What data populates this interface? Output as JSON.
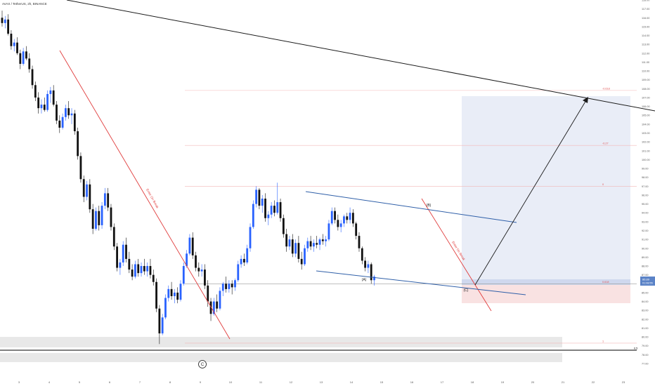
{
  "header": {
    "symbol": "AVAX / TetherUS, 2h, BINANCE"
  },
  "chart_data": {
    "type": "candlestick",
    "title": "AVAX / TetherUS, 2h, BINANCE",
    "xlabel": "",
    "ylabel": "",
    "ylim": [
      76.7,
      118.8
    ],
    "y_ticks": [
      "77.00",
      "78.00",
      "79.00",
      "80.00",
      "81.00",
      "82.00",
      "83.00",
      "84.00",
      "85.00",
      "86.00",
      "87.00",
      "88.00",
      "89.00",
      "90.00",
      "91.00",
      "92.00",
      "93.00",
      "94.00",
      "95.00",
      "96.00",
      "97.00",
      "98.00",
      "99.00",
      "100.00",
      "101.00",
      "102.00",
      "103.00",
      "104.00",
      "105.00",
      "106.00",
      "107.00",
      "108.00",
      "109.00",
      "110.00",
      "111.00",
      "112.00",
      "113.00",
      "114.00",
      "115.00",
      "116.00",
      "117.00",
      "118.00"
    ],
    "x_ticks": [
      "3",
      "4",
      "5",
      "6",
      "7",
      "8",
      "9",
      "10",
      "11",
      "12",
      "13",
      "14",
      "15",
      "16",
      "17",
      "18",
      "19",
      "20",
      "21",
      "22",
      "23"
    ],
    "grid": false,
    "candles": [
      {
        "o": 116.0,
        "h": 116.8,
        "l": 115.0,
        "c": 115.4
      },
      {
        "o": 115.4,
        "h": 116.2,
        "l": 114.8,
        "c": 115.8
      },
      {
        "o": 115.8,
        "h": 116.4,
        "l": 114.0,
        "c": 114.2
      },
      {
        "o": 114.2,
        "h": 114.6,
        "l": 112.4,
        "c": 112.8
      },
      {
        "o": 112.8,
        "h": 113.6,
        "l": 112.2,
        "c": 113.2
      },
      {
        "o": 113.2,
        "h": 113.8,
        "l": 111.8,
        "c": 112.0
      },
      {
        "o": 112.0,
        "h": 112.4,
        "l": 110.2,
        "c": 110.8
      },
      {
        "o": 110.8,
        "h": 112.6,
        "l": 110.6,
        "c": 112.2
      },
      {
        "o": 112.2,
        "h": 112.8,
        "l": 111.2,
        "c": 111.4
      },
      {
        "o": 111.4,
        "h": 112.0,
        "l": 109.8,
        "c": 110.2
      },
      {
        "o": 110.2,
        "h": 110.6,
        "l": 108.0,
        "c": 108.4
      },
      {
        "o": 108.4,
        "h": 108.8,
        "l": 106.6,
        "c": 107.0
      },
      {
        "o": 107.0,
        "h": 107.6,
        "l": 105.2,
        "c": 105.8
      },
      {
        "o": 105.8,
        "h": 106.8,
        "l": 105.2,
        "c": 106.2
      },
      {
        "o": 106.2,
        "h": 107.0,
        "l": 105.4,
        "c": 105.6
      },
      {
        "o": 105.6,
        "h": 107.8,
        "l": 105.4,
        "c": 107.4
      },
      {
        "o": 107.4,
        "h": 108.2,
        "l": 106.4,
        "c": 107.8
      },
      {
        "o": 107.8,
        "h": 108.4,
        "l": 106.0,
        "c": 106.2
      },
      {
        "o": 106.2,
        "h": 106.6,
        "l": 104.0,
        "c": 104.4
      },
      {
        "o": 104.4,
        "h": 105.0,
        "l": 103.0,
        "c": 103.6
      },
      {
        "o": 103.6,
        "h": 105.2,
        "l": 103.4,
        "c": 104.8
      },
      {
        "o": 104.8,
        "h": 106.2,
        "l": 104.4,
        "c": 105.8
      },
      {
        "o": 105.8,
        "h": 106.6,
        "l": 104.6,
        "c": 105.0
      },
      {
        "o": 105.0,
        "h": 105.8,
        "l": 104.0,
        "c": 105.2
      },
      {
        "o": 105.2,
        "h": 105.6,
        "l": 102.8,
        "c": 103.2
      },
      {
        "o": 103.2,
        "h": 103.6,
        "l": 100.0,
        "c": 100.4
      },
      {
        "o": 100.4,
        "h": 100.8,
        "l": 97.4,
        "c": 97.8
      },
      {
        "o": 97.8,
        "h": 98.2,
        "l": 95.2,
        "c": 95.8
      },
      {
        "o": 95.8,
        "h": 97.6,
        "l": 95.4,
        "c": 97.2
      },
      {
        "o": 97.2,
        "h": 97.8,
        "l": 94.0,
        "c": 94.4
      },
      {
        "o": 94.4,
        "h": 95.0,
        "l": 91.6,
        "c": 92.2
      },
      {
        "o": 92.2,
        "h": 94.6,
        "l": 92.0,
        "c": 94.2
      },
      {
        "o": 94.2,
        "h": 94.8,
        "l": 92.0,
        "c": 92.6
      },
      {
        "o": 92.6,
        "h": 95.2,
        "l": 92.2,
        "c": 94.8
      },
      {
        "o": 94.8,
        "h": 96.8,
        "l": 94.4,
        "c": 96.2
      },
      {
        "o": 96.2,
        "h": 96.8,
        "l": 94.2,
        "c": 94.6
      },
      {
        "o": 94.6,
        "h": 95.0,
        "l": 92.0,
        "c": 92.4
      },
      {
        "o": 92.4,
        "h": 92.8,
        "l": 89.8,
        "c": 90.2
      },
      {
        "o": 90.2,
        "h": 90.6,
        "l": 87.4,
        "c": 87.8
      },
      {
        "o": 87.8,
        "h": 88.8,
        "l": 87.0,
        "c": 88.4
      },
      {
        "o": 88.4,
        "h": 90.8,
        "l": 88.0,
        "c": 90.4
      },
      {
        "o": 90.4,
        "h": 91.2,
        "l": 88.4,
        "c": 88.8
      },
      {
        "o": 88.8,
        "h": 89.6,
        "l": 87.2,
        "c": 87.6
      },
      {
        "o": 87.6,
        "h": 88.2,
        "l": 86.4,
        "c": 86.8
      },
      {
        "o": 86.8,
        "h": 88.6,
        "l": 86.6,
        "c": 88.2
      },
      {
        "o": 88.2,
        "h": 88.8,
        "l": 86.8,
        "c": 87.2
      },
      {
        "o": 87.2,
        "h": 88.4,
        "l": 86.8,
        "c": 88.0
      },
      {
        "o": 88.0,
        "h": 88.8,
        "l": 87.0,
        "c": 87.4
      },
      {
        "o": 87.4,
        "h": 88.4,
        "l": 86.8,
        "c": 88.0
      },
      {
        "o": 88.0,
        "h": 88.8,
        "l": 86.6,
        "c": 87.0
      },
      {
        "o": 87.0,
        "h": 87.6,
        "l": 85.8,
        "c": 86.2
      },
      {
        "o": 86.2,
        "h": 86.6,
        "l": 82.8,
        "c": 83.2
      },
      {
        "o": 83.2,
        "h": 83.6,
        "l": 79.2,
        "c": 80.4
      },
      {
        "o": 80.4,
        "h": 82.6,
        "l": 80.2,
        "c": 82.2
      },
      {
        "o": 82.2,
        "h": 84.8,
        "l": 82.0,
        "c": 84.4
      },
      {
        "o": 84.4,
        "h": 85.8,
        "l": 84.0,
        "c": 85.4
      },
      {
        "o": 85.4,
        "h": 86.2,
        "l": 84.2,
        "c": 84.6
      },
      {
        "o": 84.6,
        "h": 85.4,
        "l": 83.8,
        "c": 85.0
      },
      {
        "o": 85.0,
        "h": 85.6,
        "l": 83.8,
        "c": 84.2
      },
      {
        "o": 84.2,
        "h": 86.4,
        "l": 84.0,
        "c": 86.0
      },
      {
        "o": 86.0,
        "h": 88.4,
        "l": 85.8,
        "c": 88.0
      },
      {
        "o": 88.0,
        "h": 89.8,
        "l": 87.8,
        "c": 89.4
      },
      {
        "o": 89.4,
        "h": 91.6,
        "l": 89.2,
        "c": 91.2
      },
      {
        "o": 91.2,
        "h": 91.8,
        "l": 88.8,
        "c": 89.2
      },
      {
        "o": 89.2,
        "h": 89.6,
        "l": 87.4,
        "c": 87.8
      },
      {
        "o": 87.8,
        "h": 88.4,
        "l": 86.8,
        "c": 87.4
      },
      {
        "o": 87.4,
        "h": 88.2,
        "l": 86.8,
        "c": 87.6
      },
      {
        "o": 87.6,
        "h": 88.2,
        "l": 85.4,
        "c": 85.8
      },
      {
        "o": 85.8,
        "h": 86.4,
        "l": 83.4,
        "c": 84.0
      },
      {
        "o": 84.0,
        "h": 84.4,
        "l": 81.8,
        "c": 82.6
      },
      {
        "o": 82.6,
        "h": 84.4,
        "l": 82.4,
        "c": 84.0
      },
      {
        "o": 84.0,
        "h": 84.8,
        "l": 82.8,
        "c": 83.2
      },
      {
        "o": 83.2,
        "h": 85.6,
        "l": 83.0,
        "c": 85.2
      },
      {
        "o": 85.2,
        "h": 86.2,
        "l": 84.6,
        "c": 86.0
      },
      {
        "o": 86.0,
        "h": 86.8,
        "l": 85.0,
        "c": 85.4
      },
      {
        "o": 85.4,
        "h": 86.4,
        "l": 85.0,
        "c": 86.0
      },
      {
        "o": 86.0,
        "h": 86.4,
        "l": 84.8,
        "c": 85.6
      },
      {
        "o": 85.6,
        "h": 86.6,
        "l": 85.2,
        "c": 86.4
      },
      {
        "o": 86.4,
        "h": 88.6,
        "l": 86.2,
        "c": 88.2
      },
      {
        "o": 88.2,
        "h": 89.2,
        "l": 87.8,
        "c": 88.8
      },
      {
        "o": 88.8,
        "h": 89.4,
        "l": 88.0,
        "c": 88.4
      },
      {
        "o": 88.4,
        "h": 90.4,
        "l": 88.2,
        "c": 90.0
      },
      {
        "o": 90.0,
        "h": 92.8,
        "l": 89.6,
        "c": 92.4
      },
      {
        "o": 92.4,
        "h": 95.4,
        "l": 92.2,
        "c": 95.0
      },
      {
        "o": 95.0,
        "h": 97.0,
        "l": 94.6,
        "c": 96.6
      },
      {
        "o": 96.6,
        "h": 96.8,
        "l": 94.4,
        "c": 94.8
      },
      {
        "o": 94.8,
        "h": 96.0,
        "l": 94.0,
        "c": 95.6
      },
      {
        "o": 95.6,
        "h": 96.2,
        "l": 93.0,
        "c": 93.4
      },
      {
        "o": 93.4,
        "h": 94.2,
        "l": 92.6,
        "c": 93.8
      },
      {
        "o": 93.8,
        "h": 95.2,
        "l": 93.4,
        "c": 94.8
      },
      {
        "o": 94.8,
        "h": 95.4,
        "l": 93.6,
        "c": 94.0
      },
      {
        "o": 94.0,
        "h": 97.4,
        "l": 93.8,
        "c": 95.2
      },
      {
        "o": 95.2,
        "h": 95.6,
        "l": 93.0,
        "c": 93.4
      },
      {
        "o": 93.4,
        "h": 93.8,
        "l": 91.2,
        "c": 91.6
      },
      {
        "o": 91.6,
        "h": 92.2,
        "l": 89.6,
        "c": 90.2
      },
      {
        "o": 90.2,
        "h": 91.4,
        "l": 89.8,
        "c": 91.0
      },
      {
        "o": 91.0,
        "h": 91.6,
        "l": 89.0,
        "c": 89.4
      },
      {
        "o": 89.4,
        "h": 91.0,
        "l": 89.0,
        "c": 90.6
      },
      {
        "o": 90.6,
        "h": 91.4,
        "l": 88.4,
        "c": 88.8
      },
      {
        "o": 88.8,
        "h": 89.6,
        "l": 87.6,
        "c": 88.2
      },
      {
        "o": 88.2,
        "h": 90.4,
        "l": 88.0,
        "c": 90.0
      },
      {
        "o": 90.0,
        "h": 91.2,
        "l": 89.6,
        "c": 90.8
      },
      {
        "o": 90.8,
        "h": 91.4,
        "l": 89.8,
        "c": 90.2
      },
      {
        "o": 90.2,
        "h": 91.0,
        "l": 89.6,
        "c": 90.6
      },
      {
        "o": 90.6,
        "h": 91.4,
        "l": 90.0,
        "c": 90.4
      },
      {
        "o": 90.4,
        "h": 91.2,
        "l": 89.8,
        "c": 91.0
      },
      {
        "o": 91.0,
        "h": 91.6,
        "l": 90.4,
        "c": 90.8
      },
      {
        "o": 90.8,
        "h": 91.4,
        "l": 90.2,
        "c": 91.0
      },
      {
        "o": 91.0,
        "h": 93.2,
        "l": 90.8,
        "c": 92.8
      },
      {
        "o": 92.8,
        "h": 94.6,
        "l": 92.6,
        "c": 94.2
      },
      {
        "o": 94.2,
        "h": 94.6,
        "l": 92.8,
        "c": 93.2
      },
      {
        "o": 93.2,
        "h": 93.8,
        "l": 92.0,
        "c": 92.4
      },
      {
        "o": 92.4,
        "h": 93.2,
        "l": 91.8,
        "c": 92.8
      },
      {
        "o": 92.8,
        "h": 93.8,
        "l": 92.4,
        "c": 93.6
      },
      {
        "o": 93.6,
        "h": 94.0,
        "l": 92.8,
        "c": 93.2
      },
      {
        "o": 93.2,
        "h": 94.6,
        "l": 92.8,
        "c": 94.0
      },
      {
        "o": 94.0,
        "h": 94.4,
        "l": 92.4,
        "c": 92.8
      },
      {
        "o": 92.8,
        "h": 93.0,
        "l": 91.0,
        "c": 91.4
      },
      {
        "o": 91.4,
        "h": 91.8,
        "l": 89.6,
        "c": 90.0
      },
      {
        "o": 90.0,
        "h": 90.2,
        "l": 88.2,
        "c": 88.6
      },
      {
        "o": 88.6,
        "h": 89.0,
        "l": 87.4,
        "c": 87.8
      },
      {
        "o": 87.8,
        "h": 88.6,
        "l": 87.2,
        "c": 88.2
      },
      {
        "o": 88.2,
        "h": 88.4,
        "l": 86.0,
        "c": 86.4
      },
      {
        "o": 86.4,
        "h": 87.0,
        "l": 85.8,
        "c": 86.8
      }
    ],
    "last_price": "86.89",
    "countdown": "01:08:55",
    "horizontal_levels": [
      {
        "price": 107.8,
        "label": "-0.618",
        "color": "#f2b8b8",
        "x_from": 263
      },
      {
        "price": 101.6,
        "label": "-0.27",
        "color": "#f2b8b8",
        "x_from": 263
      },
      {
        "price": 97.0,
        "label": "0",
        "color": "#f2b8b8",
        "x_from": 263
      },
      {
        "price": 86.0,
        "label": "0.618",
        "color": "#999999",
        "x_from": 263
      },
      {
        "price": 79.3,
        "label": "1",
        "color": "#f2b8b8",
        "x_from": 263
      },
      {
        "price": 78.5,
        "label": "0.5",
        "color": "#000000",
        "x_from": 0
      }
    ],
    "wave_labels": [
      "(A)",
      "(B)",
      "(C)",
      "C"
    ],
    "trendline_annotations": [
      "Enter On Break",
      "Enter On Break"
    ]
  }
}
